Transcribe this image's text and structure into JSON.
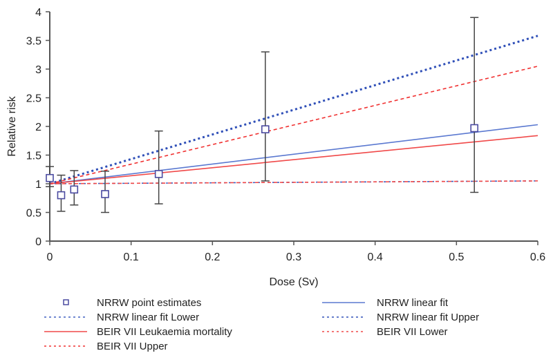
{
  "chart_data": {
    "type": "line",
    "xlabel": "Dose (Sv)",
    "ylabel": "Relative risk",
    "xlim": [
      0,
      0.6
    ],
    "ylim": [
      0,
      4
    ],
    "xticks": [
      "0",
      "0.1",
      "0.2",
      "0.3",
      "0.4",
      "0.5",
      "0.6"
    ],
    "yticks": [
      "0",
      "0.5",
      "1",
      "1.5",
      "2",
      "2.5",
      "3",
      "3.5",
      "4"
    ],
    "grid": false,
    "legend_position": "bottom",
    "points": {
      "name": "NRRW point estimates",
      "color": "#4a4aa0",
      "x": [
        0,
        0.014,
        0.03,
        0.068,
        0.134,
        0.265,
        0.522
      ],
      "y": [
        1.1,
        0.8,
        0.9,
        0.82,
        1.17,
        1.95,
        1.97
      ],
      "lower": [
        0.95,
        0.52,
        0.63,
        0.5,
        0.65,
        1.05,
        0.85
      ],
      "upper": [
        1.3,
        1.15,
        1.23,
        1.22,
        1.92,
        3.3,
        3.9
      ]
    },
    "series": [
      {
        "name": "NRRW linear fit",
        "color": "#5a78d0",
        "style": "solid",
        "x": [
          0,
          0.6
        ],
        "y": [
          1.0,
          2.03
        ]
      },
      {
        "name": "NRRW linear fit Lower",
        "color": "#4060c0",
        "style": "dotted",
        "x": [
          0,
          0.6
        ],
        "y": [
          1.0,
          1.05
        ]
      },
      {
        "name": "BEIR VII Leukaemia mortality",
        "color": "#f04848",
        "style": "solid",
        "x": [
          0,
          0.6
        ],
        "y": [
          1.0,
          1.84
        ]
      },
      {
        "name": "NRRW linear fit Upper",
        "color": "#3050b8",
        "style": "dotted",
        "x": [
          0,
          0.6
        ],
        "y": [
          1.0,
          3.58
        ]
      },
      {
        "name": "BEIR VII Upper",
        "color": "#f03030",
        "style": "dashed",
        "x": [
          0,
          0.6
        ],
        "y": [
          1.0,
          3.05
        ]
      },
      {
        "name": "BEIR VII Lower",
        "color": "#f04848",
        "style": "dashed",
        "x": [
          0,
          0.6
        ],
        "y": [
          1.0,
          1.05
        ]
      }
    ],
    "legend": [
      "NRRW point estimates",
      "NRRW linear fit",
      "NRRW linear fit Lower",
      "NRRW linear fit Upper",
      "BEIR VII Leukaemia mortality",
      "BEIR VII Lower",
      "BEIR VII Upper"
    ]
  }
}
